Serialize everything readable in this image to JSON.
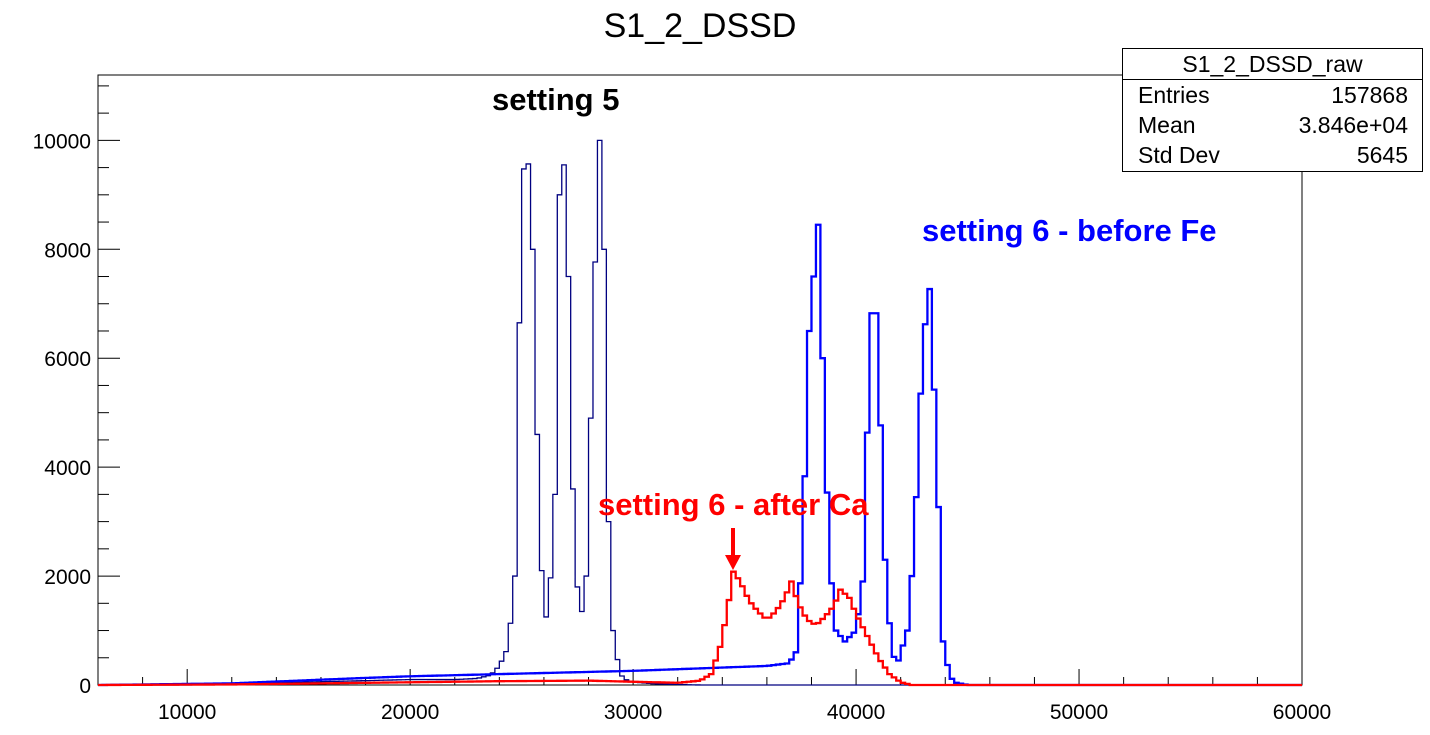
{
  "chart_data": {
    "type": "histogram",
    "title": "S1_2_DSSD",
    "xlim": [
      6000,
      60000
    ],
    "ylim": [
      0,
      11200
    ],
    "grid": false,
    "x_ticks": [
      10000,
      20000,
      30000,
      40000,
      50000,
      60000
    ],
    "y_ticks": [
      0,
      2000,
      4000,
      6000,
      8000,
      10000
    ],
    "stats": {
      "title": "S1_2_DSSD_raw",
      "rows": [
        {
          "label": "Entries",
          "value": "157868"
        },
        {
          "label": "Mean",
          "value": "3.846e+04"
        },
        {
          "label": "Std Dev",
          "value": "5645"
        }
      ]
    },
    "series": [
      {
        "name": "setting 5",
        "color": "#000080",
        "stroke_width": 1.3,
        "points": [
          [
            6000,
            0
          ],
          [
            10000,
            0
          ],
          [
            12000,
            20
          ],
          [
            14000,
            40
          ],
          [
            16000,
            60
          ],
          [
            18000,
            80
          ],
          [
            20000,
            100
          ],
          [
            22000,
            100
          ],
          [
            23000,
            120
          ],
          [
            23600,
            180
          ],
          [
            24000,
            350
          ],
          [
            24400,
            700
          ],
          [
            24700,
            2000
          ],
          [
            24800,
            4700
          ],
          [
            25000,
            8600
          ],
          [
            25200,
            10350
          ],
          [
            25500,
            8000
          ],
          [
            25800,
            2900
          ],
          [
            26000,
            1300
          ],
          [
            26200,
            1200
          ],
          [
            26500,
            3500
          ],
          [
            26700,
            9000
          ],
          [
            26900,
            9550
          ],
          [
            27100,
            7500
          ],
          [
            27300,
            3600
          ],
          [
            27500,
            1800
          ],
          [
            27700,
            1350
          ],
          [
            27900,
            2000
          ],
          [
            28100,
            4900
          ],
          [
            28400,
            9200
          ],
          [
            28500,
            10000
          ],
          [
            28700,
            8000
          ],
          [
            28900,
            3000
          ],
          [
            29100,
            1000
          ],
          [
            29400,
            200
          ],
          [
            29800,
            60
          ],
          [
            31000,
            20
          ],
          [
            33000,
            0
          ],
          [
            60000,
            0
          ]
        ]
      },
      {
        "name": "setting 6 - before Fe",
        "color": "#0000ff",
        "stroke_width": 2.3,
        "points": [
          [
            6000,
            0
          ],
          [
            12000,
            30
          ],
          [
            15000,
            80
          ],
          [
            18000,
            130
          ],
          [
            20000,
            160
          ],
          [
            22000,
            180
          ],
          [
            24000,
            200
          ],
          [
            26000,
            220
          ],
          [
            28000,
            240
          ],
          [
            30000,
            260
          ],
          [
            32000,
            290
          ],
          [
            34000,
            320
          ],
          [
            36000,
            350
          ],
          [
            37000,
            400
          ],
          [
            37300,
            600
          ],
          [
            37600,
            2500
          ],
          [
            37900,
            6500
          ],
          [
            38100,
            7500
          ],
          [
            38300,
            8450
          ],
          [
            38500,
            6000
          ],
          [
            38800,
            2300
          ],
          [
            39100,
            1000
          ],
          [
            39500,
            800
          ],
          [
            40000,
            1000
          ],
          [
            40300,
            1900
          ],
          [
            40600,
            6000
          ],
          [
            40800,
            7650
          ],
          [
            41000,
            6000
          ],
          [
            41300,
            2300
          ],
          [
            41600,
            550
          ],
          [
            41900,
            450
          ],
          [
            42300,
            1000
          ],
          [
            42600,
            2500
          ],
          [
            43000,
            6300
          ],
          [
            43300,
            7270
          ],
          [
            43600,
            4500
          ],
          [
            43900,
            800
          ],
          [
            44200,
            150
          ],
          [
            44500,
            40
          ],
          [
            45000,
            0
          ],
          [
            60000,
            0
          ]
        ]
      },
      {
        "name": "setting 6 - after Ca",
        "color": "#ff0000",
        "stroke_width": 2.3,
        "points": [
          [
            6000,
            0
          ],
          [
            12000,
            10
          ],
          [
            16000,
            30
          ],
          [
            20000,
            50
          ],
          [
            24000,
            70
          ],
          [
            28000,
            80
          ],
          [
            30000,
            60
          ],
          [
            32000,
            40
          ],
          [
            33000,
            80
          ],
          [
            33500,
            200
          ],
          [
            33900,
            700
          ],
          [
            34200,
            1300
          ],
          [
            34500,
            2080
          ],
          [
            34800,
            1900
          ],
          [
            35200,
            1550
          ],
          [
            35600,
            1350
          ],
          [
            36000,
            1200
          ],
          [
            36400,
            1350
          ],
          [
            36800,
            1600
          ],
          [
            37100,
            1900
          ],
          [
            37400,
            1500
          ],
          [
            37800,
            1200
          ],
          [
            38200,
            1100
          ],
          [
            38600,
            1250
          ],
          [
            39000,
            1450
          ],
          [
            39300,
            1750
          ],
          [
            39700,
            1600
          ],
          [
            40000,
            1300
          ],
          [
            40500,
            900
          ],
          [
            41000,
            500
          ],
          [
            41500,
            200
          ],
          [
            42000,
            50
          ],
          [
            42500,
            0
          ],
          [
            60000,
            0
          ]
        ]
      }
    ],
    "annotations": [
      {
        "text": "setting 5",
        "color": "#000000"
      },
      {
        "text": "setting 6 - before Fe",
        "color": "#0000ff"
      },
      {
        "text": "setting 6 - after Ca",
        "color": "#ff0000"
      }
    ]
  }
}
